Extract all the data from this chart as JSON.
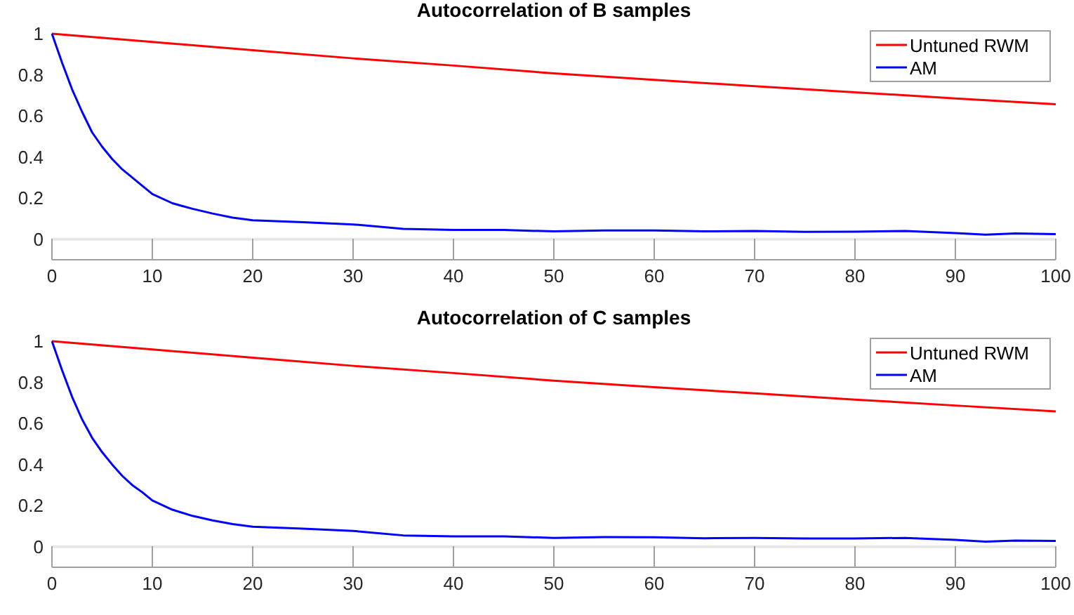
{
  "chart_data": [
    {
      "type": "line",
      "title": "Autocorrelation of B samples",
      "xlim": [
        0,
        100
      ],
      "xticks": [
        0,
        10,
        20,
        30,
        40,
        50,
        60,
        70,
        80,
        90,
        100
      ],
      "ylim": [
        -0.1,
        1
      ],
      "yticks": [
        0,
        0.2,
        0.4,
        0.6,
        0.8,
        1
      ],
      "legend": "top right",
      "grid": false,
      "ref_lines": [
        {
          "axis": "y",
          "value": 0,
          "color": "#e6e6e6"
        }
      ],
      "series": [
        {
          "name": "Untuned RWM",
          "color": "#ff0000",
          "x": [
            0,
            10,
            20,
            30,
            40,
            50,
            60,
            70,
            80,
            90,
            100
          ],
          "values": [
            1,
            0.96,
            0.92,
            0.88,
            0.845,
            0.807,
            0.775,
            0.745,
            0.715,
            0.685,
            0.657
          ]
        },
        {
          "name": "AM",
          "color": "#0000ff",
          "x": [
            0,
            1,
            2,
            3,
            4,
            5,
            6,
            7,
            8,
            9,
            10,
            12,
            14,
            16,
            18,
            20,
            25,
            30,
            35,
            40,
            45,
            50,
            55,
            60,
            65,
            70,
            75,
            80,
            85,
            90,
            93,
            96,
            100
          ],
          "values": [
            1,
            0.86,
            0.73,
            0.62,
            0.52,
            0.45,
            0.39,
            0.34,
            0.3,
            0.26,
            0.22,
            0.175,
            0.148,
            0.125,
            0.105,
            0.092,
            0.083,
            0.072,
            0.05,
            0.045,
            0.045,
            0.038,
            0.043,
            0.043,
            0.038,
            0.04,
            0.036,
            0.037,
            0.04,
            0.03,
            0.022,
            0.028,
            0.025
          ]
        }
      ]
    },
    {
      "type": "line",
      "title": "Autocorrelation of C samples",
      "xlim": [
        0,
        100
      ],
      "xticks": [
        0,
        10,
        20,
        30,
        40,
        50,
        60,
        70,
        80,
        90,
        100
      ],
      "ylim": [
        -0.1,
        1
      ],
      "yticks": [
        0,
        0.2,
        0.4,
        0.6,
        0.8,
        1
      ],
      "legend": "top right",
      "grid": false,
      "ref_lines": [
        {
          "axis": "y",
          "value": 0,
          "color": "#e6e6e6"
        }
      ],
      "series": [
        {
          "name": "Untuned RWM",
          "color": "#ff0000",
          "x": [
            0,
            10,
            20,
            30,
            40,
            50,
            60,
            70,
            80,
            90,
            100
          ],
          "values": [
            1,
            0.96,
            0.92,
            0.88,
            0.845,
            0.808,
            0.776,
            0.746,
            0.716,
            0.687,
            0.658
          ]
        },
        {
          "name": "AM",
          "color": "#0000ff",
          "x": [
            0,
            1,
            2,
            3,
            4,
            5,
            6,
            7,
            8,
            9,
            10,
            12,
            14,
            16,
            18,
            20,
            25,
            30,
            35,
            40,
            45,
            50,
            55,
            60,
            65,
            70,
            75,
            80,
            85,
            90,
            93,
            96,
            100
          ],
          "values": [
            1,
            0.86,
            0.73,
            0.62,
            0.53,
            0.46,
            0.4,
            0.345,
            0.3,
            0.265,
            0.225,
            0.18,
            0.15,
            0.128,
            0.11,
            0.097,
            0.088,
            0.077,
            0.055,
            0.05,
            0.05,
            0.043,
            0.047,
            0.046,
            0.041,
            0.043,
            0.04,
            0.04,
            0.043,
            0.033,
            0.025,
            0.03,
            0.028
          ]
        }
      ]
    }
  ]
}
